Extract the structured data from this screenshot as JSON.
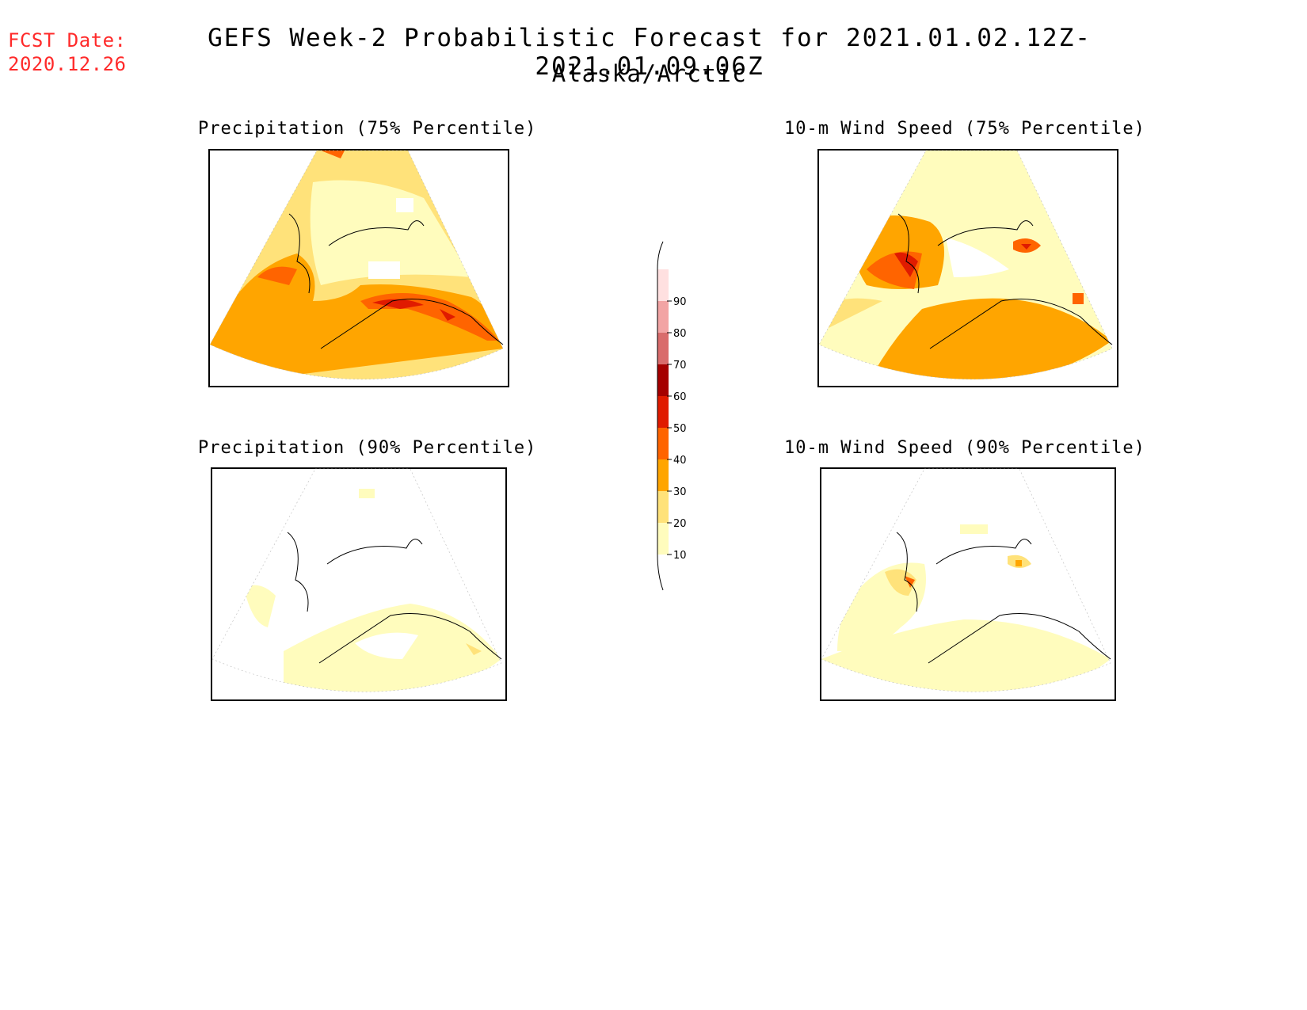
{
  "header": {
    "fcst_label": "FCST Date:",
    "fcst_date": "2020.12.26",
    "title": "GEFS Week-2 Probabilistic Forecast for 2021.01.02.12Z-2021.01.09.06Z",
    "region": "Alaska/Arctic"
  },
  "panels": [
    {
      "title": "Precipitation (75% Percentile)",
      "variable": "precipitation",
      "percentile": 75
    },
    {
      "title": "10-m Wind Speed (75% Percentile)",
      "variable": "wind_speed_10m",
      "percentile": 75
    },
    {
      "title": "Precipitation (90% Percentile)",
      "variable": "precipitation",
      "percentile": 90
    },
    {
      "title": "10-m Wind Speed (90% Percentile)",
      "variable": "wind_speed_10m",
      "percentile": 90
    }
  ],
  "legend": {
    "levels": [
      "10",
      "20",
      "30",
      "40",
      "50",
      "60",
      "70",
      "80",
      "90"
    ],
    "colors": [
      "#fffcbd",
      "#ffe27a",
      "#ffa500",
      "#ff6400",
      "#e01b00",
      "#a50000",
      "#d96c6c",
      "#f2a4a4",
      "#ffe0e0"
    ]
  }
}
